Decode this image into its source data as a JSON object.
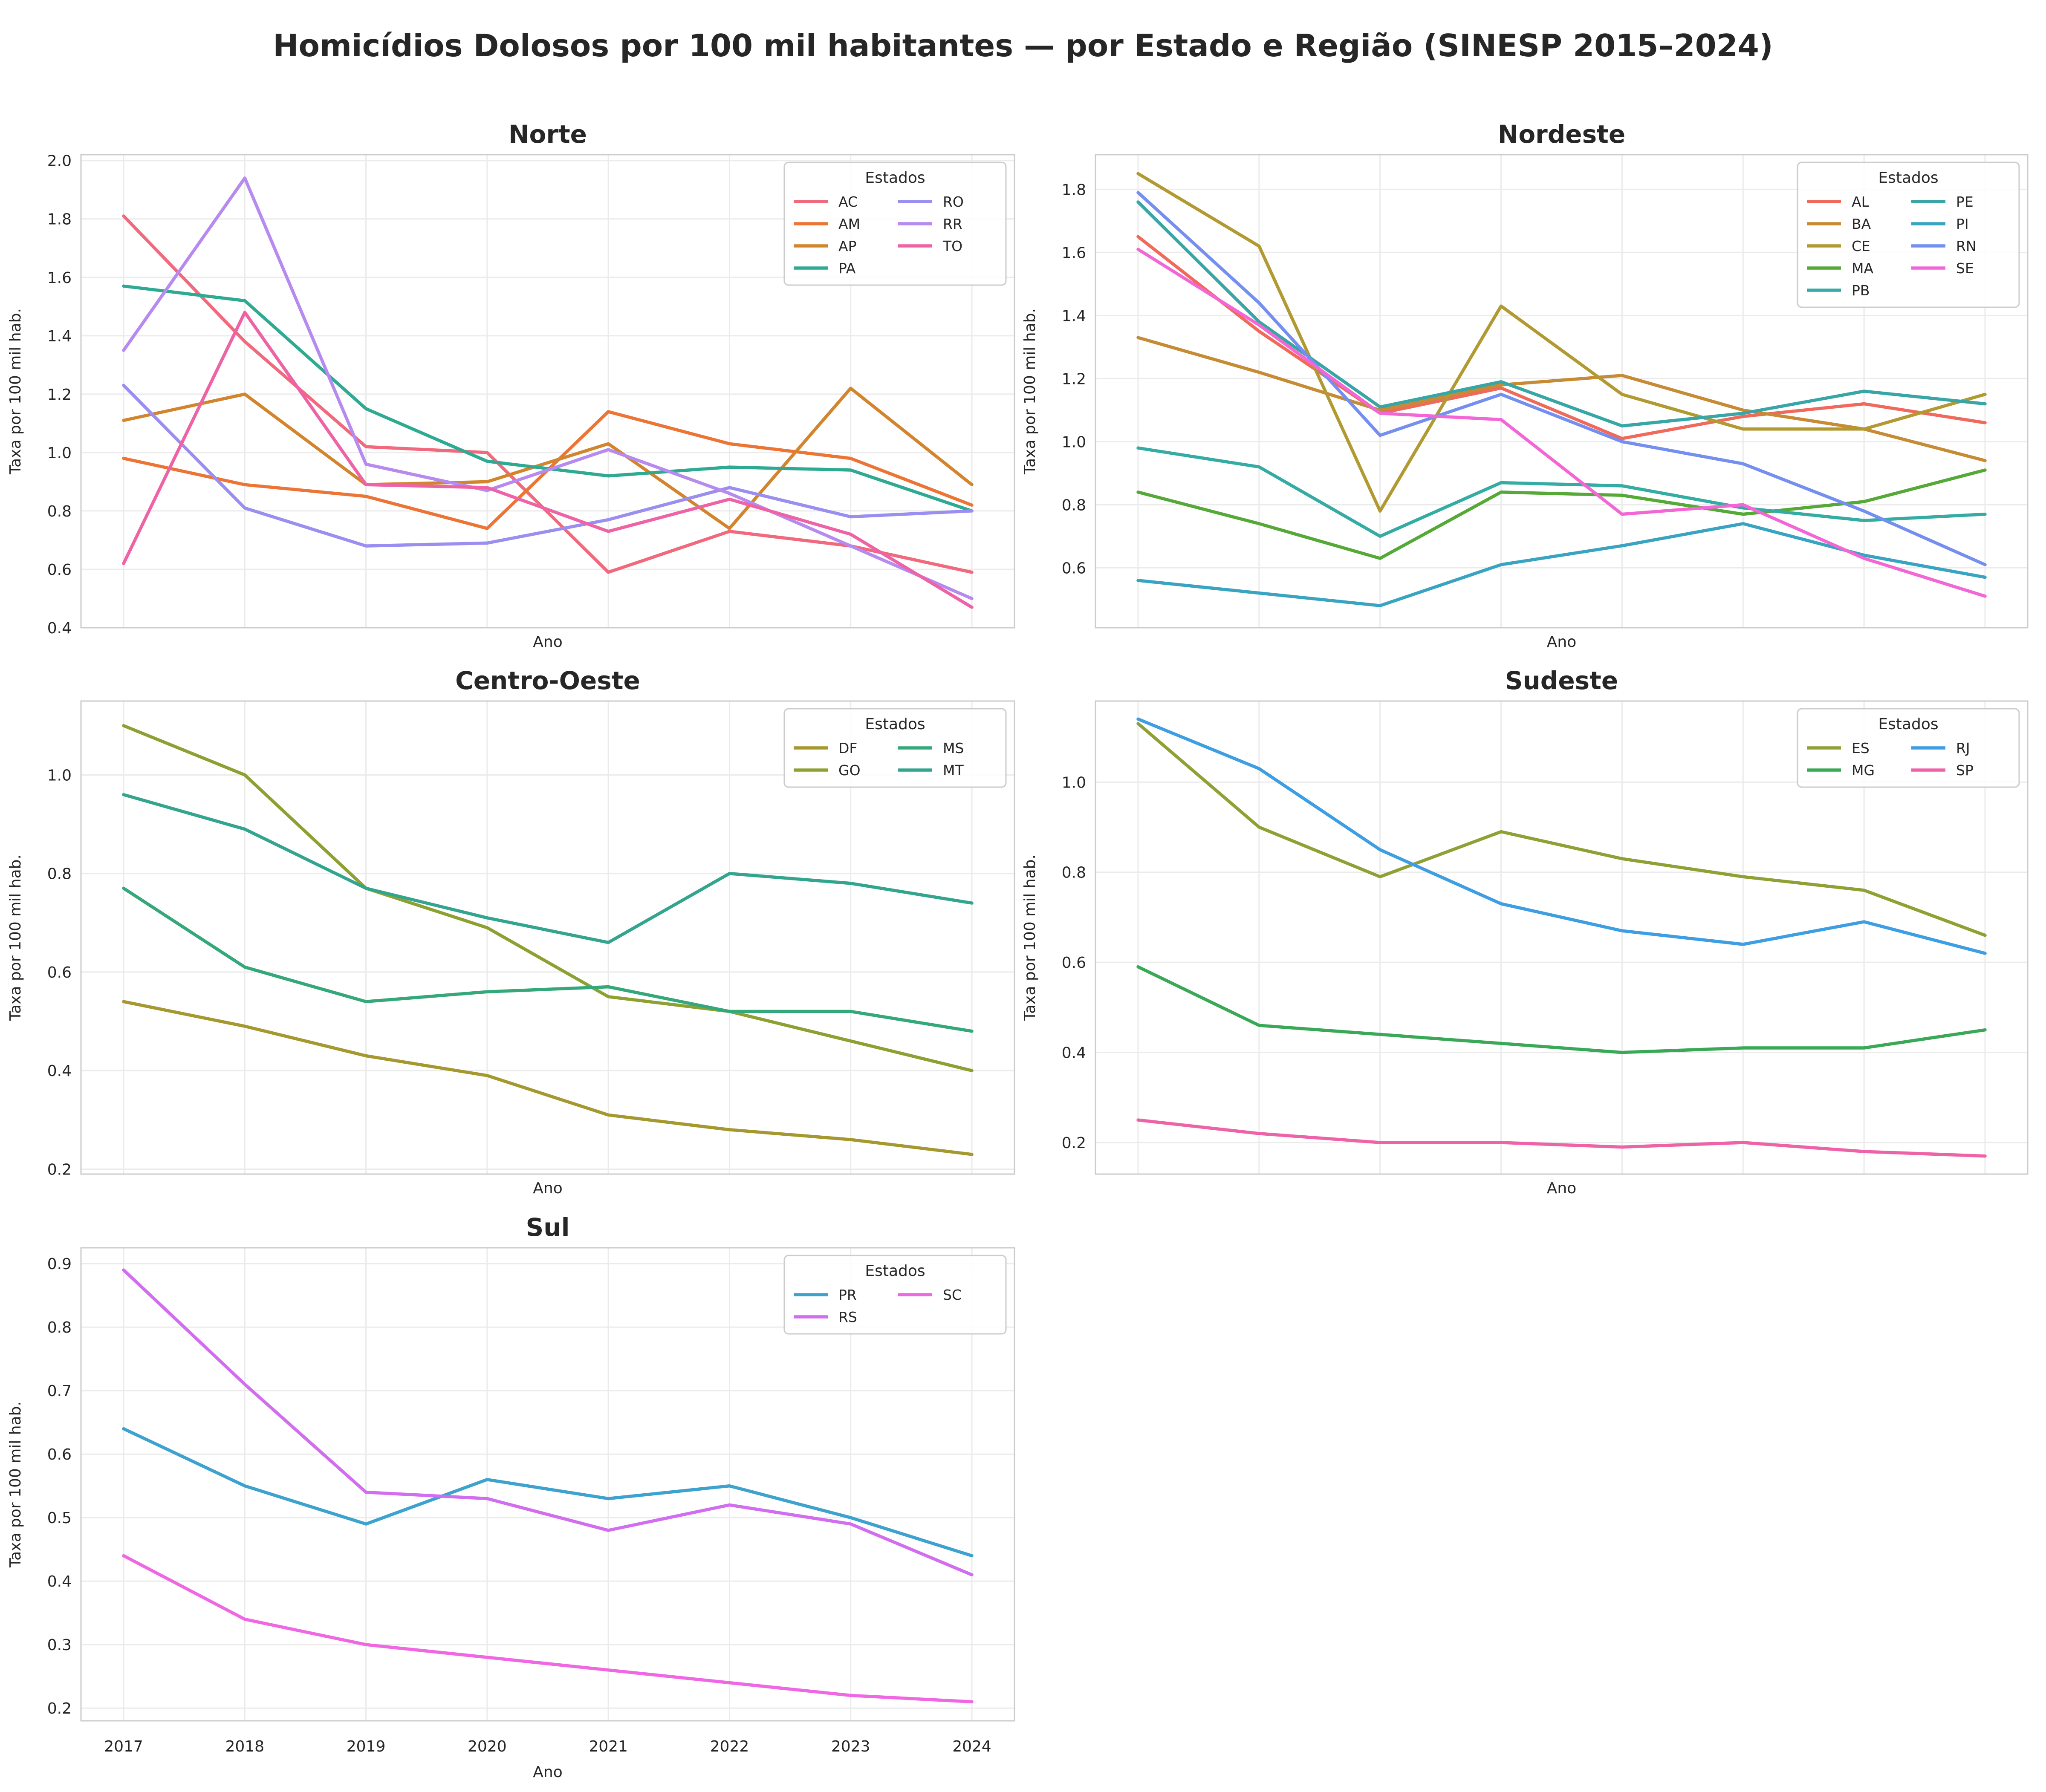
{
  "figure": {
    "title": "Homicídios Dolosos por 100 mil habitantes — por Estado e Região (SINESP 2015–2024)"
  },
  "chart_data": [
    {
      "type": "line",
      "title": "Norte",
      "xlabel": "Ano",
      "ylabel": "Taxa por 100 mil hab.",
      "x": [
        2017,
        2018,
        2019,
        2020,
        2021,
        2022,
        2023,
        2024
      ],
      "x_ticks_visible": false,
      "ylim": [
        0.4,
        2.02
      ],
      "yticks": [
        "0.4",
        "0.6",
        "0.8",
        "1.0",
        "1.2",
        "1.4",
        "1.6",
        "1.8",
        "2.0"
      ],
      "grid": true,
      "legend": {
        "title": "Estados",
        "position": "top-right",
        "columns": 2
      },
      "series": [
        {
          "name": "AC",
          "color": "#f0697d",
          "values": [
            1.81,
            1.38,
            1.02,
            1.0,
            0.59,
            0.73,
            0.68,
            0.59
          ]
        },
        {
          "name": "AM",
          "color": "#ec7536",
          "values": [
            0.98,
            0.89,
            0.85,
            0.74,
            1.14,
            1.03,
            0.98,
            0.82
          ]
        },
        {
          "name": "AP",
          "color": "#d2852d",
          "values": [
            1.11,
            1.2,
            0.89,
            0.9,
            1.03,
            0.74,
            1.22,
            0.89
          ]
        },
        {
          "name": "PA",
          "color": "#2faa92",
          "values": [
            1.57,
            1.52,
            1.15,
            0.97,
            0.92,
            0.95,
            0.94,
            0.8
          ]
        },
        {
          "name": "RO",
          "color": "#9a8ff0",
          "values": [
            1.23,
            0.81,
            0.68,
            0.69,
            0.77,
            0.88,
            0.78,
            0.8
          ]
        },
        {
          "name": "RR",
          "color": "#b68aef",
          "values": [
            1.35,
            1.94,
            0.96,
            0.87,
            1.01,
            0.86,
            0.68,
            0.5
          ]
        },
        {
          "name": "TO",
          "color": "#ee63a5",
          "values": [
            0.62,
            1.48,
            0.89,
            0.88,
            0.73,
            0.84,
            0.72,
            0.47
          ]
        }
      ]
    },
    {
      "type": "line",
      "title": "Nordeste",
      "xlabel": "Ano",
      "ylabel": "Taxa por 100 mil hab.",
      "x": [
        2017,
        2018,
        2019,
        2020,
        2021,
        2022,
        2023,
        2024
      ],
      "x_ticks_visible": false,
      "ylim": [
        0.41,
        1.91
      ],
      "yticks": [
        "0.6",
        "0.8",
        "1.0",
        "1.2",
        "1.4",
        "1.6",
        "1.8"
      ],
      "grid": true,
      "legend": {
        "title": "Estados",
        "position": "top-right",
        "columns": 2
      },
      "series": [
        {
          "name": "AL",
          "color": "#f0695a",
          "values": [
            1.65,
            1.35,
            1.09,
            1.17,
            1.01,
            1.08,
            1.12,
            1.06
          ]
        },
        {
          "name": "BA",
          "color": "#c68b34",
          "values": [
            1.33,
            1.22,
            1.1,
            1.18,
            1.21,
            1.1,
            1.04,
            0.94
          ]
        },
        {
          "name": "CE",
          "color": "#b29a32",
          "values": [
            1.85,
            1.62,
            0.78,
            1.43,
            1.15,
            1.04,
            1.04,
            1.15
          ]
        },
        {
          "name": "MA",
          "color": "#55a937",
          "values": [
            0.84,
            0.74,
            0.63,
            0.84,
            0.83,
            0.77,
            0.81,
            0.91
          ]
        },
        {
          "name": "PB",
          "color": "#34aba3",
          "values": [
            0.98,
            0.92,
            0.7,
            0.87,
            0.86,
            0.79,
            0.75,
            0.77
          ]
        },
        {
          "name": "PE",
          "color": "#38a6a6",
          "values": [
            1.76,
            1.38,
            1.11,
            1.19,
            1.05,
            1.09,
            1.16,
            1.12
          ]
        },
        {
          "name": "PI",
          "color": "#39a4c2",
          "values": [
            0.56,
            0.52,
            0.48,
            0.61,
            0.67,
            0.74,
            0.64,
            0.57
          ]
        },
        {
          "name": "RN",
          "color": "#748ff0",
          "values": [
            1.79,
            1.44,
            1.02,
            1.15,
            1.0,
            0.93,
            0.78,
            0.61
          ]
        },
        {
          "name": "SE",
          "color": "#f267d5",
          "values": [
            1.61,
            1.37,
            1.09,
            1.07,
            0.77,
            0.8,
            0.63,
            0.51
          ]
        }
      ]
    },
    {
      "type": "line",
      "title": "Centro-Oeste",
      "xlabel": "Ano",
      "ylabel": "Taxa por 100 mil hab.",
      "x": [
        2017,
        2018,
        2019,
        2020,
        2021,
        2022,
        2023,
        2024
      ],
      "x_ticks_visible": false,
      "ylim": [
        0.19,
        1.15
      ],
      "yticks": [
        "0.2",
        "0.4",
        "0.6",
        "0.8",
        "1.0"
      ],
      "grid": true,
      "legend": {
        "title": "Estados",
        "position": "top-right",
        "columns": 2
      },
      "series": [
        {
          "name": "DF",
          "color": "#a5982f",
          "values": [
            0.54,
            0.49,
            0.43,
            0.39,
            0.31,
            0.28,
            0.26,
            0.23
          ]
        },
        {
          "name": "GO",
          "color": "#8da132",
          "values": [
            1.1,
            1.0,
            0.77,
            0.69,
            0.55,
            0.52,
            0.46,
            0.4
          ]
        },
        {
          "name": "MS",
          "color": "#34a87b",
          "values": [
            0.77,
            0.61,
            0.54,
            0.56,
            0.57,
            0.52,
            0.52,
            0.48
          ]
        },
        {
          "name": "MT",
          "color": "#33a58e",
          "values": [
            0.96,
            0.89,
            0.77,
            0.71,
            0.66,
            0.8,
            0.78,
            0.74
          ]
        }
      ]
    },
    {
      "type": "line",
      "title": "Sudeste",
      "xlabel": "Ano",
      "ylabel": "Taxa por 100 mil hab.",
      "x": [
        2017,
        2018,
        2019,
        2020,
        2021,
        2022,
        2023,
        2024
      ],
      "x_ticks_visible": false,
      "ylim": [
        0.13,
        1.18
      ],
      "yticks": [
        "0.2",
        "0.4",
        "0.6",
        "0.8",
        "1.0"
      ],
      "grid": true,
      "legend": {
        "title": "Estados",
        "position": "top-right",
        "columns": 2
      },
      "series": [
        {
          "name": "ES",
          "color": "#8fa135",
          "values": [
            1.13,
            0.9,
            0.79,
            0.89,
            0.83,
            0.79,
            0.76,
            0.66
          ]
        },
        {
          "name": "MG",
          "color": "#3aa957",
          "values": [
            0.59,
            0.46,
            0.44,
            0.42,
            0.4,
            0.41,
            0.41,
            0.45
          ]
        },
        {
          "name": "RJ",
          "color": "#3d9ee4",
          "values": [
            1.14,
            1.03,
            0.85,
            0.73,
            0.67,
            0.64,
            0.69,
            0.62
          ]
        },
        {
          "name": "SP",
          "color": "#ee63a8",
          "values": [
            0.25,
            0.22,
            0.2,
            0.2,
            0.19,
            0.2,
            0.18,
            0.17
          ]
        }
      ]
    },
    {
      "type": "line",
      "title": "Sul",
      "xlabel": "Ano",
      "ylabel": "Taxa por 100 mil hab.",
      "x": [
        2017,
        2018,
        2019,
        2020,
        2021,
        2022,
        2023,
        2024
      ],
      "x_ticks_visible": true,
      "ylim": [
        0.18,
        0.925
      ],
      "yticks": [
        "0.2",
        "0.3",
        "0.4",
        "0.5",
        "0.6",
        "0.7",
        "0.8",
        "0.9"
      ],
      "grid": true,
      "legend": {
        "title": "Estados",
        "position": "top-right",
        "columns": 2
      },
      "series": [
        {
          "name": "PR",
          "color": "#3ea2cf",
          "values": [
            0.64,
            0.55,
            0.49,
            0.56,
            0.53,
            0.55,
            0.5,
            0.44
          ]
        },
        {
          "name": "RS",
          "color": "#d26df0",
          "values": [
            0.89,
            0.71,
            0.54,
            0.53,
            0.48,
            0.52,
            0.49,
            0.41
          ]
        },
        {
          "name": "SC",
          "color": "#f067e4",
          "values": [
            0.44,
            0.34,
            0.3,
            0.28,
            0.26,
            0.24,
            0.22,
            0.21
          ]
        }
      ]
    }
  ]
}
